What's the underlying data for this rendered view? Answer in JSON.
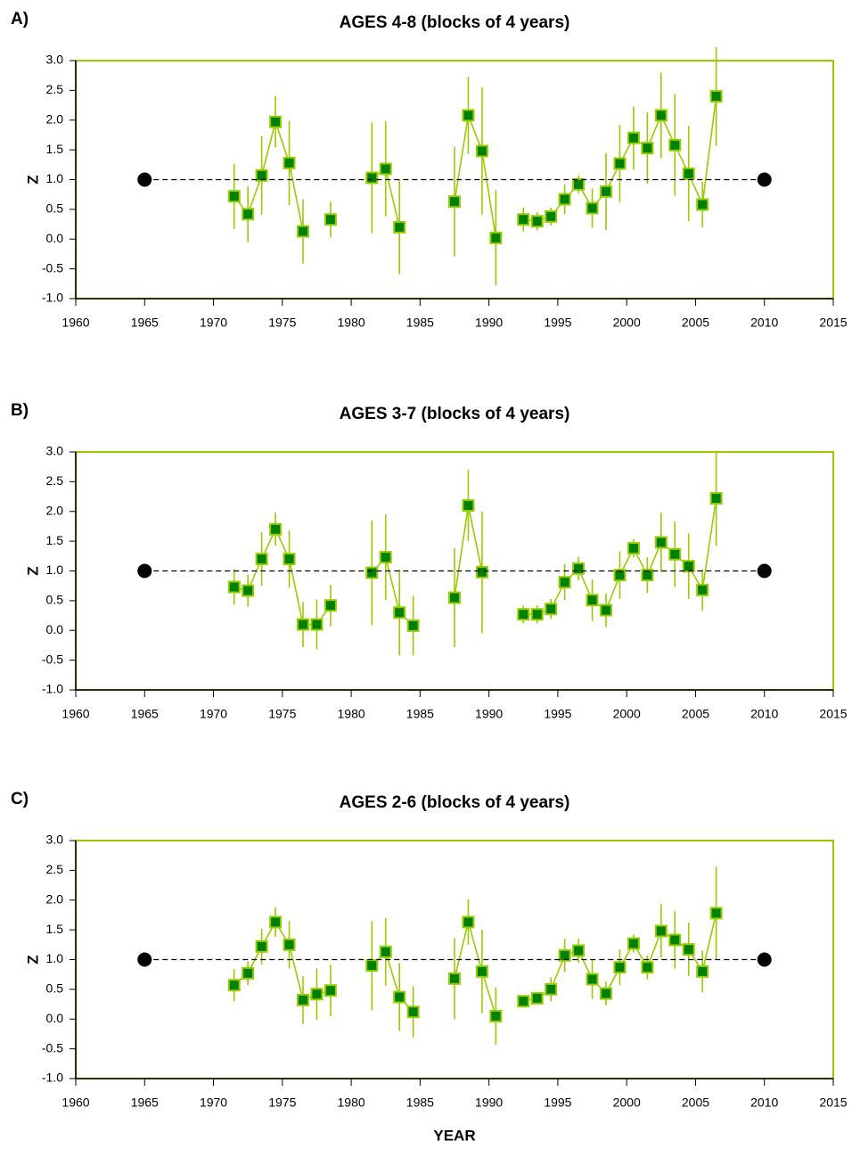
{
  "chart_data": [
    {
      "type": "line",
      "panel_label": "A)",
      "title": "AGES 4-8 (blocks of 4 years)",
      "y_label": "Z",
      "xlim": [
        1960,
        2015
      ],
      "xticks": [
        1960,
        1965,
        1970,
        1975,
        1980,
        1985,
        1990,
        1995,
        2000,
        2005,
        2010,
        2015
      ],
      "ylim": [
        -1,
        3
      ],
      "yticks": [
        {
          "value": -1,
          "label": "-1.0"
        },
        {
          "value": -0.5,
          "label": "-0.5"
        },
        {
          "value": 0,
          "label": "0.0"
        },
        {
          "value": 0.5,
          "label": "0.5"
        },
        {
          "value": 1,
          "label": "1.0"
        },
        {
          "value": 1.5,
          "label": "1.5"
        },
        {
          "value": 2,
          "label": "2.0"
        },
        {
          "value": 2.5,
          "label": "2.5"
        },
        {
          "value": 3,
          "label": "3.0"
        }
      ],
      "frame_color": "#99cc00",
      "series": [
        {
          "color": "#99cc00",
          "marker_color": "#008000",
          "marker": "square",
          "x": [
            1971.5,
            1972.5,
            1973.5,
            1974.5,
            1975.5,
            1976.5,
            1977.5,
            1978.5,
            1979.5,
            1980.5,
            1981.5,
            1982.5,
            1983.5,
            1984.5,
            1985.5,
            1986.5,
            1987.5,
            1988.5,
            1989.5,
            1990.5,
            1991.5,
            1992.5,
            1993.5,
            1994.5,
            1995.5,
            1996.5,
            1997.5,
            1998.5,
            1999.5,
            2000.5,
            2001.5,
            2002.5,
            2003.5,
            2004.5,
            2005.5,
            2006.5
          ],
          "values": [
            0.72,
            0.42,
            1.07,
            1.97,
            1.28,
            0.13,
            null,
            0.33,
            null,
            null,
            1.03,
            1.18,
            0.2,
            null,
            null,
            null,
            0.63,
            2.08,
            1.48,
            0.02,
            null,
            0.33,
            0.3,
            0.38,
            0.67,
            0.92,
            0.52,
            0.8,
            1.27,
            1.7,
            1.53,
            2.08,
            1.58,
            1.1,
            0.58,
            2.4
          ],
          "errors": [
            0.55,
            0.47,
            0.66,
            0.43,
            0.71,
            0.54,
            null,
            0.3,
            null,
            null,
            0.93,
            0.8,
            0.79,
            null,
            null,
            null,
            0.92,
            0.65,
            1.07,
            0.8,
            null,
            0.2,
            0.15,
            0.15,
            0.25,
            0.15,
            0.33,
            0.65,
            0.65,
            0.53,
            0.6,
            0.72,
            0.85,
            0.8,
            0.38,
            0.83
          ]
        },
        {
          "color": "#000000",
          "marker_color": "#000000",
          "marker": "circle",
          "style": "dashed",
          "x": [
            1965,
            2010
          ],
          "values": [
            1,
            1
          ]
        }
      ]
    },
    {
      "type": "line",
      "panel_label": "B)",
      "title": "AGES 3-7 (blocks of 4 years)",
      "y_label": "Z",
      "xlim": [
        1960,
        2015
      ],
      "xticks": [
        1960,
        1965,
        1970,
        1975,
        1980,
        1985,
        1990,
        1995,
        2000,
        2005,
        2010,
        2015
      ],
      "ylim": [
        -1,
        3
      ],
      "yticks": [
        {
          "value": -1,
          "label": "-1.0"
        },
        {
          "value": -0.5,
          "label": "-0.5"
        },
        {
          "value": 0,
          "label": "0.0"
        },
        {
          "value": 0.5,
          "label": "0.5"
        },
        {
          "value": 1,
          "label": "1.0"
        },
        {
          "value": 1.5,
          "label": "1.5"
        },
        {
          "value": 2,
          "label": "2.0"
        },
        {
          "value": 2.5,
          "label": "2.5"
        },
        {
          "value": 3,
          "label": "3.0"
        }
      ],
      "frame_color": "#99cc00",
      "series": [
        {
          "color": "#99cc00",
          "marker_color": "#008000",
          "marker": "square",
          "x": [
            1971.5,
            1972.5,
            1973.5,
            1974.5,
            1975.5,
            1976.5,
            1977.5,
            1978.5,
            1979.5,
            1980.5,
            1981.5,
            1982.5,
            1983.5,
            1984.5,
            1985.5,
            1986.5,
            1987.5,
            1988.5,
            1989.5,
            1990.5,
            1991.5,
            1992.5,
            1993.5,
            1994.5,
            1995.5,
            1996.5,
            1997.5,
            1998.5,
            1999.5,
            2000.5,
            2001.5,
            2002.5,
            2003.5,
            2004.5,
            2005.5,
            2006.5
          ],
          "values": [
            0.73,
            0.67,
            1.2,
            1.7,
            1.2,
            0.1,
            0.1,
            0.42,
            null,
            null,
            0.97,
            1.23,
            0.3,
            0.08,
            null,
            null,
            0.55,
            2.1,
            0.98,
            null,
            null,
            0.27,
            0.27,
            0.36,
            0.81,
            1.04,
            0.51,
            0.34,
            0.93,
            1.38,
            0.93,
            1.48,
            1.28,
            1.08,
            0.68,
            2.22
          ],
          "errors": [
            0.3,
            0.27,
            0.45,
            0.28,
            0.48,
            0.38,
            0.42,
            0.35,
            null,
            null,
            0.88,
            0.72,
            0.72,
            0.5,
            null,
            null,
            0.83,
            0.6,
            1.02,
            null,
            null,
            0.15,
            0.15,
            0.17,
            0.3,
            0.2,
            0.35,
            0.28,
            0.4,
            0.15,
            0.3,
            0.5,
            0.55,
            0.55,
            0.35,
            0.8
          ]
        },
        {
          "color": "#000000",
          "marker_color": "#000000",
          "marker": "circle",
          "style": "dashed",
          "x": [
            1965,
            2010
          ],
          "values": [
            1,
            1
          ]
        }
      ]
    },
    {
      "type": "line",
      "panel_label": "C)",
      "title": "AGES 2-6 (blocks of 4 years)",
      "y_label": "Z",
      "x_label": "YEAR",
      "xlim": [
        1960,
        2015
      ],
      "xticks": [
        1960,
        1965,
        1970,
        1975,
        1980,
        1985,
        1990,
        1995,
        2000,
        2005,
        2010,
        2015
      ],
      "ylim": [
        -1,
        3
      ],
      "yticks": [
        {
          "value": -1,
          "label": "-1.0"
        },
        {
          "value": -0.5,
          "label": "-0.5"
        },
        {
          "value": 0,
          "label": "0.0"
        },
        {
          "value": 0.5,
          "label": "0.5"
        },
        {
          "value": 1,
          "label": "1.0"
        },
        {
          "value": 1.5,
          "label": "1.5"
        },
        {
          "value": 2,
          "label": "2.0"
        },
        {
          "value": 2.5,
          "label": "2.5"
        },
        {
          "value": 3,
          "label": "3.0"
        }
      ],
      "frame_color": "#99cc00",
      "series": [
        {
          "color": "#99cc00",
          "marker_color": "#008000",
          "marker": "square",
          "x": [
            1971.5,
            1972.5,
            1973.5,
            1974.5,
            1975.5,
            1976.5,
            1977.5,
            1978.5,
            1979.5,
            1980.5,
            1981.5,
            1982.5,
            1983.5,
            1984.5,
            1985.5,
            1986.5,
            1987.5,
            1988.5,
            1989.5,
            1990.5,
            1991.5,
            1992.5,
            1993.5,
            1994.5,
            1995.5,
            1996.5,
            1997.5,
            1998.5,
            1999.5,
            2000.5,
            2001.5,
            2002.5,
            2003.5,
            2004.5,
            2005.5,
            2006.5
          ],
          "values": [
            0.57,
            0.77,
            1.22,
            1.63,
            1.25,
            0.32,
            0.42,
            0.48,
            null,
            null,
            0.9,
            1.13,
            0.37,
            0.12,
            null,
            null,
            0.68,
            1.63,
            0.8,
            0.05,
            null,
            0.3,
            0.35,
            0.5,
            1.07,
            1.15,
            0.67,
            0.43,
            0.87,
            1.27,
            0.87,
            1.48,
            1.33,
            1.17,
            0.8,
            1.78
          ],
          "errors": [
            0.27,
            0.2,
            0.3,
            0.25,
            0.4,
            0.4,
            0.43,
            0.43,
            null,
            null,
            0.75,
            0.57,
            0.57,
            0.43,
            null,
            null,
            0.68,
            0.38,
            0.7,
            0.48,
            null,
            0.1,
            0.1,
            0.2,
            0.28,
            0.2,
            0.33,
            0.2,
            0.3,
            0.15,
            0.2,
            0.45,
            0.48,
            0.45,
            0.35,
            0.78
          ]
        },
        {
          "color": "#000000",
          "marker_color": "#000000",
          "marker": "circle",
          "style": "dashed",
          "x": [
            1965,
            2010
          ],
          "values": [
            1,
            1
          ]
        }
      ]
    }
  ]
}
